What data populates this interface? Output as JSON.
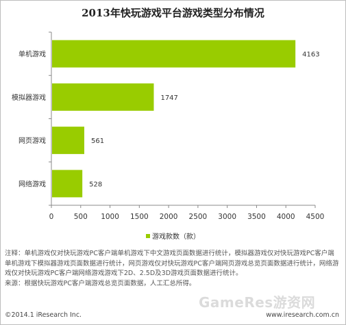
{
  "chart_data": {
    "type": "bar",
    "orientation": "horizontal",
    "title": "2013年快玩游戏平台游戏类型分布情况",
    "categories": [
      "单机游戏",
      "模拟器游戏",
      "网页游戏",
      "网络游戏"
    ],
    "series": [
      {
        "name": "游戏款数（款）",
        "values": [
          4163,
          1747,
          561,
          528
        ],
        "color": "#99cc00"
      }
    ],
    "xlim": [
      0,
      4500
    ],
    "xticks": [
      0,
      500,
      1000,
      1500,
      2000,
      2500,
      3000,
      3500,
      4000,
      4500
    ],
    "legend": "bottom-center",
    "grid": false
  },
  "notes": {
    "line1": "注释：单机游戏仅对快玩游戏PC客户端单机游戏下中文游戏页面数据进行统计，模拟器游戏仅对快玩游戏PC客户端单机游戏下模拟器游戏页面数据进行统计，网页游戏仅对快玩游戏PC客户端网页游戏总览页面数据进行统计，网络游戏仅对快玩游戏PC客户端网络游戏游戏下2D、2.5D及3D游戏页面数据进行统计。",
    "line2": "来源：根据快玩游戏PC客户端游戏总览页面数据，人工汇总所得。"
  },
  "footer": {
    "copyright": "©2014.1 iResearch Inc.",
    "website": "www.iresearch.com.cn"
  },
  "watermark": "GameRes游资网"
}
